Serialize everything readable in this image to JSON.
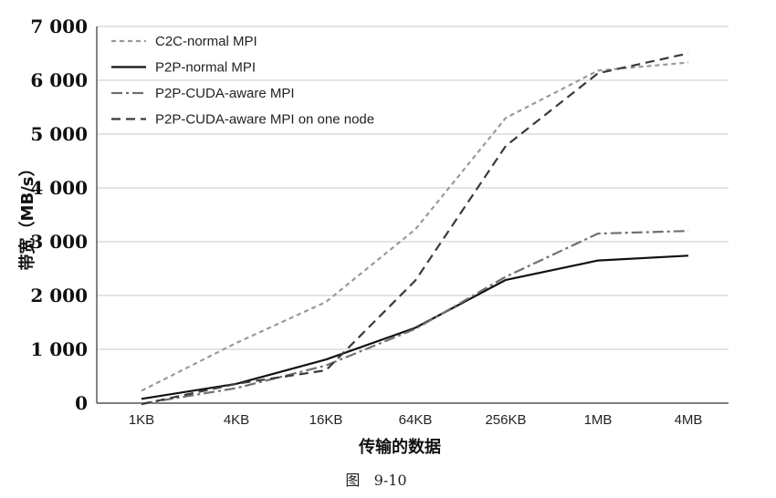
{
  "chart_data": {
    "type": "line",
    "categories": [
      "1KB",
      "4KB",
      "16KB",
      "64KB",
      "256KB",
      "1MB",
      "4MB"
    ],
    "series": [
      {
        "name": "C2C-normal MPI",
        "values": [
          230,
          1120,
          1880,
          3230,
          5300,
          6180,
          6330
        ],
        "color": "#9a9a9a",
        "dash": "5 4"
      },
      {
        "name": "P2P-normal MPI",
        "values": [
          80,
          360,
          810,
          1400,
          2290,
          2650,
          2740
        ],
        "color": "#111111",
        "dash": ""
      },
      {
        "name": "P2P-CUDA-aware MPI",
        "values": [
          -10,
          280,
          700,
          1380,
          2350,
          3150,
          3200
        ],
        "color": "#707070",
        "dash": "12 4 3 4"
      },
      {
        "name": "P2P-CUDA-aware MPI on one node",
        "values": [
          -20,
          360,
          610,
          2280,
          4780,
          6130,
          6500
        ],
        "color": "#3a3a3a",
        "dash": "10 6"
      }
    ],
    "yticks": [
      "0",
      "1 000",
      "2 000",
      "3 000",
      "4 000",
      "5 000",
      "6 000",
      "7 000"
    ],
    "ylim": [
      0,
      7000
    ],
    "xlabel": "传输的数据",
    "ylabel": "带宽（MB/s）",
    "grid": true,
    "legend": "top-left"
  },
  "caption": "图   9-10"
}
